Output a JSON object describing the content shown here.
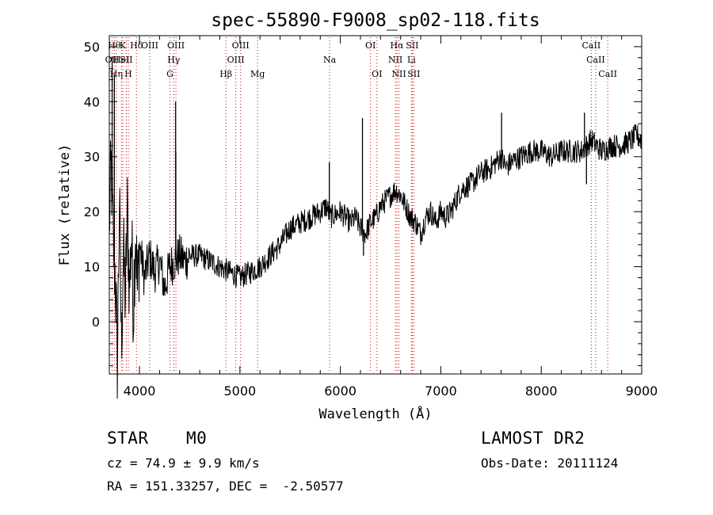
{
  "chart_data": {
    "type": "line",
    "title": "spec-55890-F9008_sp02-118.fits",
    "xlabel": "Wavelength (Å)",
    "ylabel": "Flux (relative)",
    "xlim": [
      3700,
      9000
    ],
    "ylim": [
      -9.5,
      52
    ],
    "x_ticks": [
      4000,
      5000,
      6000,
      7000,
      8000,
      9000
    ],
    "y_ticks": [
      0,
      10,
      20,
      30,
      40,
      50
    ],
    "grid": false,
    "series": [
      {
        "x": [
          3700,
          3720,
          3740,
          3760,
          3780,
          3800,
          3820,
          3840,
          3860,
          3880,
          3900,
          3920,
          3940,
          3960,
          3980,
          4000,
          4050,
          4100,
          4150,
          4200,
          4250,
          4300,
          4350,
          4400,
          4450,
          4500,
          4600,
          4700,
          4800,
          4900,
          5000,
          5100,
          5200,
          5300,
          5400,
          5500,
          5600,
          5700,
          5800,
          5860,
          5900,
          6000,
          6100,
          6150,
          6200,
          6250,
          6300,
          6350,
          6400,
          6450,
          6500,
          6550,
          6600,
          6650,
          6700,
          6750,
          6800,
          6850,
          6900,
          6950,
          7000,
          7050,
          7100,
          7150,
          7200,
          7300,
          7400,
          7500,
          7550,
          7600,
          7650,
          7700,
          7800,
          7900,
          8000,
          8100,
          8200,
          8300,
          8400,
          8450,
          8500,
          8550,
          8600,
          8700,
          8800,
          8900,
          8950,
          9000
        ],
        "y": [
          18,
          28,
          14,
          8,
          -7,
          22,
          -4,
          12,
          4,
          20,
          6,
          16,
          2,
          18,
          5,
          14,
          8,
          12,
          9,
          11,
          6,
          10,
          11,
          12,
          11,
          12,
          12,
          11,
          10,
          9,
          8,
          9,
          10,
          12,
          14,
          17,
          18,
          19,
          20,
          21,
          19,
          20,
          18,
          19,
          17,
          16,
          18,
          19,
          21,
          22,
          23,
          24,
          23,
          21,
          19,
          18,
          16,
          19,
          20,
          18,
          20,
          19,
          20,
          22,
          24,
          25,
          27,
          28,
          29,
          30,
          28,
          29,
          30,
          31,
          31,
          30,
          31,
          31,
          31,
          32,
          33,
          32,
          31,
          32,
          32,
          33,
          34,
          33
        ]
      }
    ],
    "spikes": [
      {
        "x": 3728,
        "y": 48
      },
      {
        "x": 3750,
        "y": 45
      },
      {
        "x": 4360,
        "y": 40
      },
      {
        "x": 4362,
        "y": 31
      },
      {
        "x": 5890,
        "y": 29
      },
      {
        "x": 6220,
        "y": 37
      },
      {
        "x": 6230,
        "y": 12
      },
      {
        "x": 7605,
        "y": 38
      },
      {
        "x": 8430,
        "y": 38
      },
      {
        "x": 8450,
        "y": 25
      }
    ],
    "line_markers": [
      {
        "x": 3727,
        "row": 1,
        "label": "OII"
      },
      {
        "x": 3750,
        "row": 0,
        "label": "Hθ"
      },
      {
        "x": 3770,
        "row": 2,
        "label": "Hη"
      },
      {
        "x": 3820,
        "row": 1,
        "label": "HeI"
      },
      {
        "x": 3834,
        "row": 0,
        "label": "K"
      },
      {
        "x": 3869,
        "row": 1,
        "label": "SII"
      },
      {
        "x": 3889,
        "row": 2,
        "label": "H"
      },
      {
        "x": 3970,
        "row": 0,
        "label": "Hδ"
      },
      {
        "x": 4102,
        "row": 0,
        "label": "OIII"
      },
      {
        "x": 4304,
        "row": 2,
        "label": "G"
      },
      {
        "x": 4341,
        "row": 1,
        "label": "Hγ"
      },
      {
        "x": 4363,
        "row": 0,
        "label": "OIII"
      },
      {
        "x": 4861,
        "row": 2,
        "label": "Hβ"
      },
      {
        "x": 4959,
        "row": 1,
        "label": "OIII"
      },
      {
        "x": 5007,
        "row": 0,
        "label": "OIII"
      },
      {
        "x": 5176,
        "row": 2,
        "label": "Mg"
      },
      {
        "x": 5893,
        "row": 1,
        "label": "Na"
      },
      {
        "x": 6300,
        "row": 0,
        "label": "OI"
      },
      {
        "x": 6364,
        "row": 2,
        "label": "OI"
      },
      {
        "x": 6548,
        "row": 1,
        "label": "NII"
      },
      {
        "x": 6563,
        "row": 0,
        "label": "Hα"
      },
      {
        "x": 6583,
        "row": 2,
        "label": "NII"
      },
      {
        "x": 6708,
        "row": 1,
        "label": "Li"
      },
      {
        "x": 6716,
        "row": 0,
        "label": "SII"
      },
      {
        "x": 6731,
        "row": 2,
        "label": "SII"
      },
      {
        "x": 8498,
        "row": 0,
        "label": "CaII"
      },
      {
        "x": 8542,
        "row": 1,
        "label": "CaII"
      },
      {
        "x": 8662,
        "row": 2,
        "label": "CaII"
      }
    ]
  },
  "info": {
    "class_label": "STAR",
    "subclass": "M0",
    "survey": "LAMOST DR2",
    "cz": "cz = 74.9 ± 9.9 km/s",
    "obs_date": "Obs-Date: 20111124",
    "coords": "RA = 151.33257, DEC =  -2.50577"
  }
}
